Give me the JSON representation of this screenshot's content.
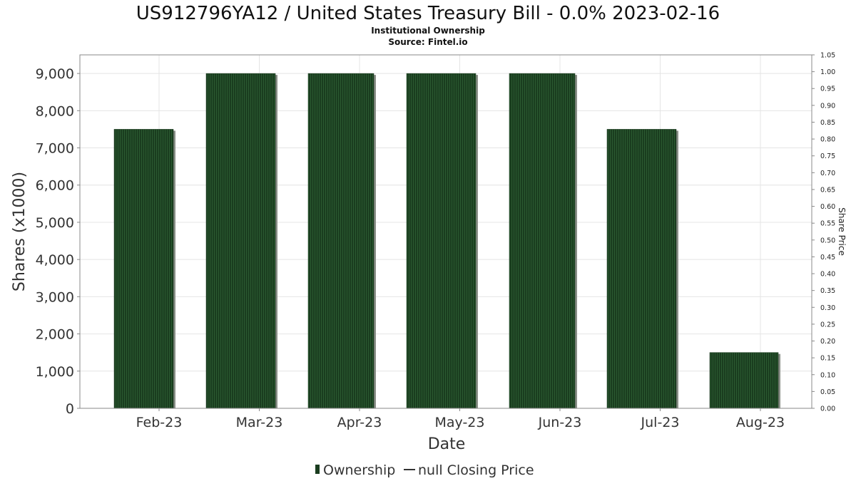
{
  "chart_data": {
    "type": "bar",
    "title": "US912796YA12 / United States Treasury Bill - 0.0% 2023-02-16",
    "subtitle_1": "Institutional Ownership",
    "subtitle_2": "Source: Fintel.io",
    "xlabel": "Date",
    "ylabel": "Shares (x1000)",
    "y2label": "Share Price",
    "categories": [
      "Feb-23",
      "Mar-23",
      "Apr-23",
      "May-23",
      "Jun-23",
      "Jul-23",
      "Aug-23"
    ],
    "series": [
      {
        "name": "Ownership",
        "values": [
          7500,
          9000,
          9000,
          9000,
          9000,
          7500,
          1500
        ]
      }
    ],
    "ylim": [
      0,
      9500
    ],
    "yticks": [
      "0",
      "1,000",
      "2,000",
      "3,000",
      "4,000",
      "5,000",
      "6,000",
      "7,000",
      "8,000",
      "9,000"
    ],
    "y2lim": [
      0,
      1.05
    ],
    "y2ticks": [
      "0.00",
      "0.05",
      "0.10",
      "0.15",
      "0.20",
      "0.25",
      "0.30",
      "0.35",
      "0.40",
      "0.45",
      "0.50",
      "0.55",
      "0.60",
      "0.65",
      "0.70",
      "0.75",
      "0.80",
      "0.85",
      "0.90",
      "0.95",
      "1.00",
      "1.05"
    ],
    "legend": {
      "position": "bottom",
      "items": [
        {
          "label": "Ownership",
          "kind": "bar"
        },
        {
          "label": "null Closing Price",
          "kind": "line"
        }
      ]
    },
    "grid": true,
    "colors": {
      "bar": "#1a3d1f",
      "bar_stripe": "#2a5a30",
      "bar_shadow": "#8a8f88",
      "grid": "#e4e4e4",
      "frame": "#888888"
    }
  }
}
